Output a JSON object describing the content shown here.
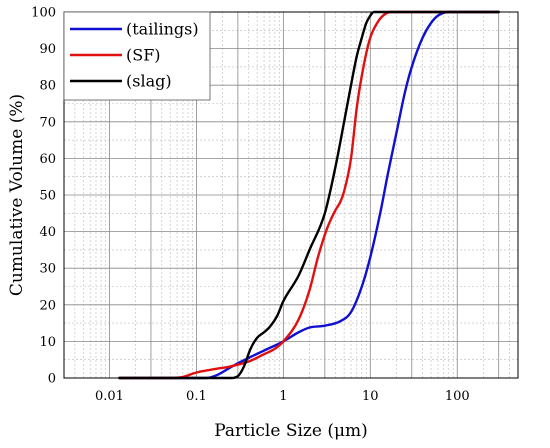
{
  "chart_data": {
    "type": "line",
    "xlabel": "Particle Size (μm)",
    "ylabel": "Cumulative  Volume (%)",
    "x_scale": "log",
    "xlim": [
      0.003,
      500
    ],
    "ylim": [
      0,
      100
    ],
    "x_ticks": [
      {
        "value": 0.01,
        "label": "0.01"
      },
      {
        "value": 0.1,
        "label": "0.1"
      },
      {
        "value": 1,
        "label": "1"
      },
      {
        "value": 10,
        "label": "10"
      },
      {
        "value": 100,
        "label": "100"
      }
    ],
    "y_ticks": [
      0,
      10,
      20,
      30,
      40,
      50,
      60,
      70,
      80,
      90,
      100
    ],
    "grid": true,
    "legend_position": "top-left",
    "series": [
      {
        "name": "(tailings)",
        "color": "#1010d0",
        "points": [
          [
            0.013,
            0
          ],
          [
            0.1,
            0
          ],
          [
            0.13,
            0
          ],
          [
            0.18,
            1
          ],
          [
            0.25,
            3
          ],
          [
            0.4,
            5.5
          ],
          [
            0.6,
            7.5
          ],
          [
            1.0,
            10
          ],
          [
            1.5,
            12.5
          ],
          [
            2.0,
            13.8
          ],
          [
            3.0,
            14.3
          ],
          [
            4.5,
            15.5
          ],
          [
            6.0,
            18
          ],
          [
            8.0,
            25
          ],
          [
            10,
            33
          ],
          [
            13,
            45
          ],
          [
            16,
            56
          ],
          [
            20,
            67
          ],
          [
            25,
            78
          ],
          [
            30,
            85
          ],
          [
            40,
            93
          ],
          [
            50,
            97
          ],
          [
            60,
            99
          ],
          [
            80,
            100
          ],
          [
            300,
            100
          ]
        ]
      },
      {
        "name": "(SF)",
        "color": "#e01010",
        "points": [
          [
            0.013,
            0
          ],
          [
            0.05,
            0
          ],
          [
            0.07,
            0.3
          ],
          [
            0.1,
            1.5
          ],
          [
            0.15,
            2.3
          ],
          [
            0.25,
            3.2
          ],
          [
            0.4,
            4.5
          ],
          [
            0.6,
            6.5
          ],
          [
            0.8,
            8
          ],
          [
            1.0,
            10
          ],
          [
            1.5,
            16
          ],
          [
            2.0,
            24
          ],
          [
            2.5,
            33
          ],
          [
            3.2,
            41
          ],
          [
            4.0,
            46
          ],
          [
            4.5,
            48
          ],
          [
            5.0,
            51
          ],
          [
            6.0,
            60
          ],
          [
            7.0,
            74
          ],
          [
            8.5,
            86
          ],
          [
            10,
            93
          ],
          [
            12,
            97
          ],
          [
            14,
            99
          ],
          [
            17,
            100
          ],
          [
            300,
            100
          ]
        ]
      },
      {
        "name": "(slag)",
        "color": "#000000",
        "points": [
          [
            0.013,
            0
          ],
          [
            0.25,
            0
          ],
          [
            0.3,
            0.5
          ],
          [
            0.35,
            3
          ],
          [
            0.42,
            8
          ],
          [
            0.5,
            11
          ],
          [
            0.6,
            12.5
          ],
          [
            0.7,
            14
          ],
          [
            0.85,
            17
          ],
          [
            1.0,
            21
          ],
          [
            1.5,
            28
          ],
          [
            2.0,
            35
          ],
          [
            3.0,
            45
          ],
          [
            4.0,
            58
          ],
          [
            5.0,
            70
          ],
          [
            6.0,
            80
          ],
          [
            7.0,
            88
          ],
          [
            8.0,
            93
          ],
          [
            9.0,
            97
          ],
          [
            10,
            99
          ],
          [
            11,
            100
          ],
          [
            300,
            100
          ]
        ]
      }
    ]
  }
}
